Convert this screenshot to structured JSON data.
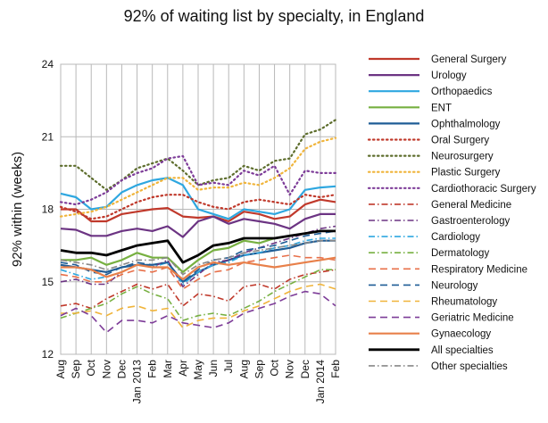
{
  "chart_data": {
    "type": "line",
    "title": "92% of waiting list by specialty, in England",
    "ylabel": "92% within (weeks)",
    "xlabel": "",
    "ylim": [
      12,
      24
    ],
    "yticks": [
      12,
      15,
      18,
      21,
      24
    ],
    "grid": true,
    "legend_position": "right",
    "categories": [
      "Aug",
      "Sep",
      "Oct",
      "Nov",
      "Dec",
      "Jan 2013",
      "Feb",
      "Mar",
      "Apr",
      "May",
      "Jun",
      "Jul",
      "Aug",
      "Sep",
      "Oct",
      "Nov",
      "Dec",
      "Jan 2014",
      "Feb"
    ],
    "series": [
      {
        "name": "General Surgery",
        "color": "#c0392b",
        "dash": "solid",
        "width": 2.2,
        "values": [
          18.0,
          18.0,
          17.5,
          17.5,
          17.8,
          17.9,
          18.0,
          18.05,
          17.7,
          17.65,
          17.7,
          17.5,
          17.9,
          17.8,
          17.6,
          17.7,
          18.2,
          18.4,
          18.3
        ]
      },
      {
        "name": "Urology",
        "color": "#6c3483",
        "dash": "solid",
        "width": 2.2,
        "values": [
          17.2,
          17.15,
          16.9,
          16.9,
          17.1,
          17.2,
          17.1,
          17.3,
          16.85,
          17.5,
          17.7,
          17.4,
          17.6,
          17.5,
          17.4,
          17.2,
          17.6,
          17.8,
          17.8
        ]
      },
      {
        "name": "Orthopaedics",
        "color": "#2ea7e0",
        "dash": "solid",
        "width": 2.2,
        "values": [
          18.65,
          18.5,
          18.0,
          18.1,
          18.7,
          19.0,
          19.2,
          19.3,
          19.0,
          18.0,
          17.8,
          17.6,
          18.0,
          17.9,
          17.8,
          18.0,
          18.8,
          18.9,
          18.95
        ]
      },
      {
        "name": "ENT",
        "color": "#77b041",
        "dash": "solid",
        "width": 2.2,
        "values": [
          15.9,
          15.9,
          16.0,
          15.7,
          15.9,
          16.2,
          16.0,
          16.0,
          15.4,
          15.9,
          16.3,
          16.4,
          16.7,
          16.6,
          16.8,
          16.9,
          17.0,
          17.1,
          17.1
        ]
      },
      {
        "name": "Ophthalmology",
        "color": "#1f5d96",
        "dash": "solid",
        "width": 2.2,
        "values": [
          15.7,
          15.6,
          15.5,
          15.4,
          15.6,
          15.7,
          15.7,
          15.8,
          15.0,
          15.4,
          15.7,
          15.9,
          16.1,
          16.2,
          16.3,
          16.4,
          16.6,
          16.7,
          16.7
        ]
      },
      {
        "name": "Oral Surgery",
        "color": "#c0392b",
        "dash": "dot",
        "width": 2.2,
        "values": [
          18.1,
          17.9,
          17.6,
          17.7,
          18.0,
          18.3,
          18.5,
          18.6,
          18.6,
          18.3,
          18.1,
          18.0,
          18.3,
          18.4,
          18.3,
          18.2,
          18.6,
          18.5,
          18.6
        ]
      },
      {
        "name": "Neurosurgery",
        "color": "#5d6d2c",
        "dash": "dot",
        "width": 2.2,
        "values": [
          19.8,
          19.8,
          19.3,
          18.8,
          19.2,
          19.7,
          19.9,
          20.1,
          19.6,
          19.0,
          19.2,
          19.3,
          19.8,
          19.6,
          20.0,
          20.1,
          21.1,
          21.3,
          21.7
        ]
      },
      {
        "name": "Plastic Surgery",
        "color": "#f0b43a",
        "dash": "dot",
        "width": 2.2,
        "values": [
          17.7,
          17.8,
          17.9,
          18.1,
          18.4,
          18.7,
          19.0,
          19.3,
          19.3,
          18.8,
          18.9,
          18.9,
          19.1,
          19.0,
          19.3,
          19.7,
          20.5,
          20.8,
          20.95
        ]
      },
      {
        "name": "Cardiothoracic Surgery",
        "color": "#7d3c98",
        "dash": "dot",
        "width": 2.2,
        "values": [
          18.3,
          18.2,
          18.4,
          18.7,
          19.2,
          19.5,
          19.7,
          20.1,
          20.2,
          19.0,
          19.1,
          19.0,
          19.6,
          19.4,
          19.8,
          18.6,
          19.6,
          19.5,
          19.5
        ]
      },
      {
        "name": "General Medicine",
        "color": "#c0392b",
        "dash": "dashdot",
        "width": 1.6,
        "values": [
          14.0,
          14.1,
          13.9,
          14.3,
          14.6,
          14.9,
          14.7,
          14.9,
          14.0,
          14.5,
          14.4,
          14.2,
          14.8,
          14.9,
          14.7,
          15.1,
          15.3,
          15.4,
          15.5
        ]
      },
      {
        "name": "Gastroenterology",
        "color": "#6c3483",
        "dash": "dashdot",
        "width": 1.6,
        "values": [
          15.0,
          15.1,
          14.9,
          14.9,
          15.4,
          15.7,
          15.6,
          15.9,
          14.8,
          15.3,
          15.8,
          15.9,
          16.2,
          16.4,
          16.6,
          16.8,
          17.0,
          17.2,
          17.3
        ]
      },
      {
        "name": "Cardiology",
        "color": "#2ea7e0",
        "dash": "dashdot",
        "width": 1.6,
        "values": [
          15.5,
          15.3,
          15.1,
          15.2,
          15.4,
          15.7,
          15.6,
          15.8,
          14.9,
          15.4,
          15.7,
          15.8,
          16.1,
          16.2,
          16.4,
          16.5,
          16.7,
          16.8,
          16.8
        ]
      },
      {
        "name": "Dermatology",
        "color": "#77b041",
        "dash": "dashdot",
        "width": 1.6,
        "values": [
          13.5,
          13.7,
          13.9,
          14.1,
          14.5,
          14.8,
          14.5,
          14.3,
          13.4,
          13.6,
          13.7,
          13.6,
          13.9,
          14.2,
          14.6,
          14.9,
          15.2,
          15.5,
          15.5
        ]
      },
      {
        "name": "Respiratory Medicine",
        "color": "#e8704a",
        "dash": "dash",
        "width": 1.6,
        "values": [
          15.3,
          15.2,
          15.0,
          15.0,
          15.3,
          15.5,
          15.4,
          15.6,
          14.7,
          15.1,
          15.4,
          15.5,
          15.8,
          15.9,
          16.0,
          16.1,
          16.0,
          16.0,
          15.9
        ]
      },
      {
        "name": "Neurology",
        "color": "#1f5d96",
        "dash": "dash",
        "width": 1.6,
        "values": [
          15.8,
          15.7,
          15.4,
          15.3,
          15.6,
          15.8,
          15.7,
          15.8,
          15.0,
          15.5,
          15.9,
          16.0,
          16.3,
          16.4,
          16.5,
          16.7,
          16.9,
          17.0,
          17.1
        ]
      },
      {
        "name": "Rheumatology",
        "color": "#f0b43a",
        "dash": "dash",
        "width": 1.6,
        "values": [
          13.7,
          13.7,
          13.8,
          13.6,
          13.9,
          14.0,
          13.8,
          13.9,
          13.1,
          13.4,
          13.5,
          13.5,
          13.8,
          14.0,
          14.3,
          14.6,
          14.8,
          14.9,
          14.7
        ]
      },
      {
        "name": "Geriatric Medicine",
        "color": "#7d3c98",
        "dash": "dash",
        "width": 1.6,
        "values": [
          13.6,
          13.9,
          13.6,
          12.9,
          13.4,
          13.4,
          13.3,
          13.6,
          13.3,
          13.2,
          13.1,
          13.3,
          13.7,
          13.9,
          14.1,
          14.4,
          14.6,
          14.5,
          14.0
        ]
      },
      {
        "name": "Gynaecology",
        "color": "#e8804a",
        "dash": "solid",
        "width": 2.2,
        "values": [
          15.6,
          15.6,
          15.5,
          15.2,
          15.4,
          15.7,
          15.6,
          15.6,
          15.1,
          15.6,
          15.8,
          15.7,
          15.8,
          15.7,
          15.6,
          15.7,
          15.8,
          15.9,
          16.0
        ]
      },
      {
        "name": "All specialties",
        "color": "#000000",
        "dash": "solid",
        "width": 2.8,
        "values": [
          16.3,
          16.2,
          16.2,
          16.1,
          16.3,
          16.5,
          16.6,
          16.7,
          15.8,
          16.1,
          16.5,
          16.6,
          16.8,
          16.8,
          16.8,
          16.9,
          17.0,
          17.1,
          17.1
        ]
      },
      {
        "name": "Other specialties",
        "color": "#888888",
        "dash": "dashdot",
        "width": 1.6,
        "values": [
          15.9,
          15.8,
          15.7,
          15.5,
          15.7,
          15.9,
          15.9,
          16.0,
          15.3,
          15.7,
          15.9,
          16.0,
          16.2,
          16.3,
          16.4,
          16.5,
          16.6,
          16.7,
          16.7
        ]
      }
    ]
  }
}
